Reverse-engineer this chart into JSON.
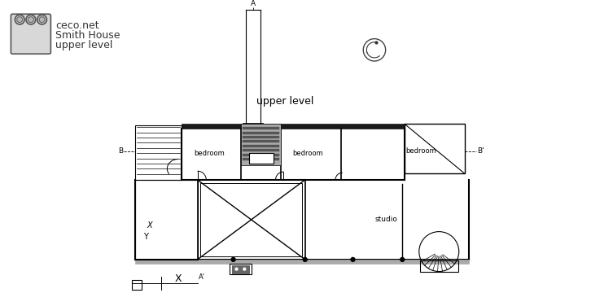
{
  "bg_color": "#ffffff",
  "lc": "#000000",
  "gray_dark": "#1a1a1a",
  "gray_mid": "#888888",
  "gray_light": "#cccccc",
  "gray_lighter": "#e8e8e8",
  "gray_bath": "#555555",
  "header": [
    "ceco.net",
    "Smith House",
    "upper level"
  ],
  "title": "upper level",
  "label_bedroom1": "bedroom",
  "label_bedroom2": "bedroom",
  "label_bedroom3": "bedroom",
  "label_studio": "studio",
  "lA": "A",
  "lAp": "A'",
  "lB": "B",
  "lBp": "B'",
  "lX": "X"
}
